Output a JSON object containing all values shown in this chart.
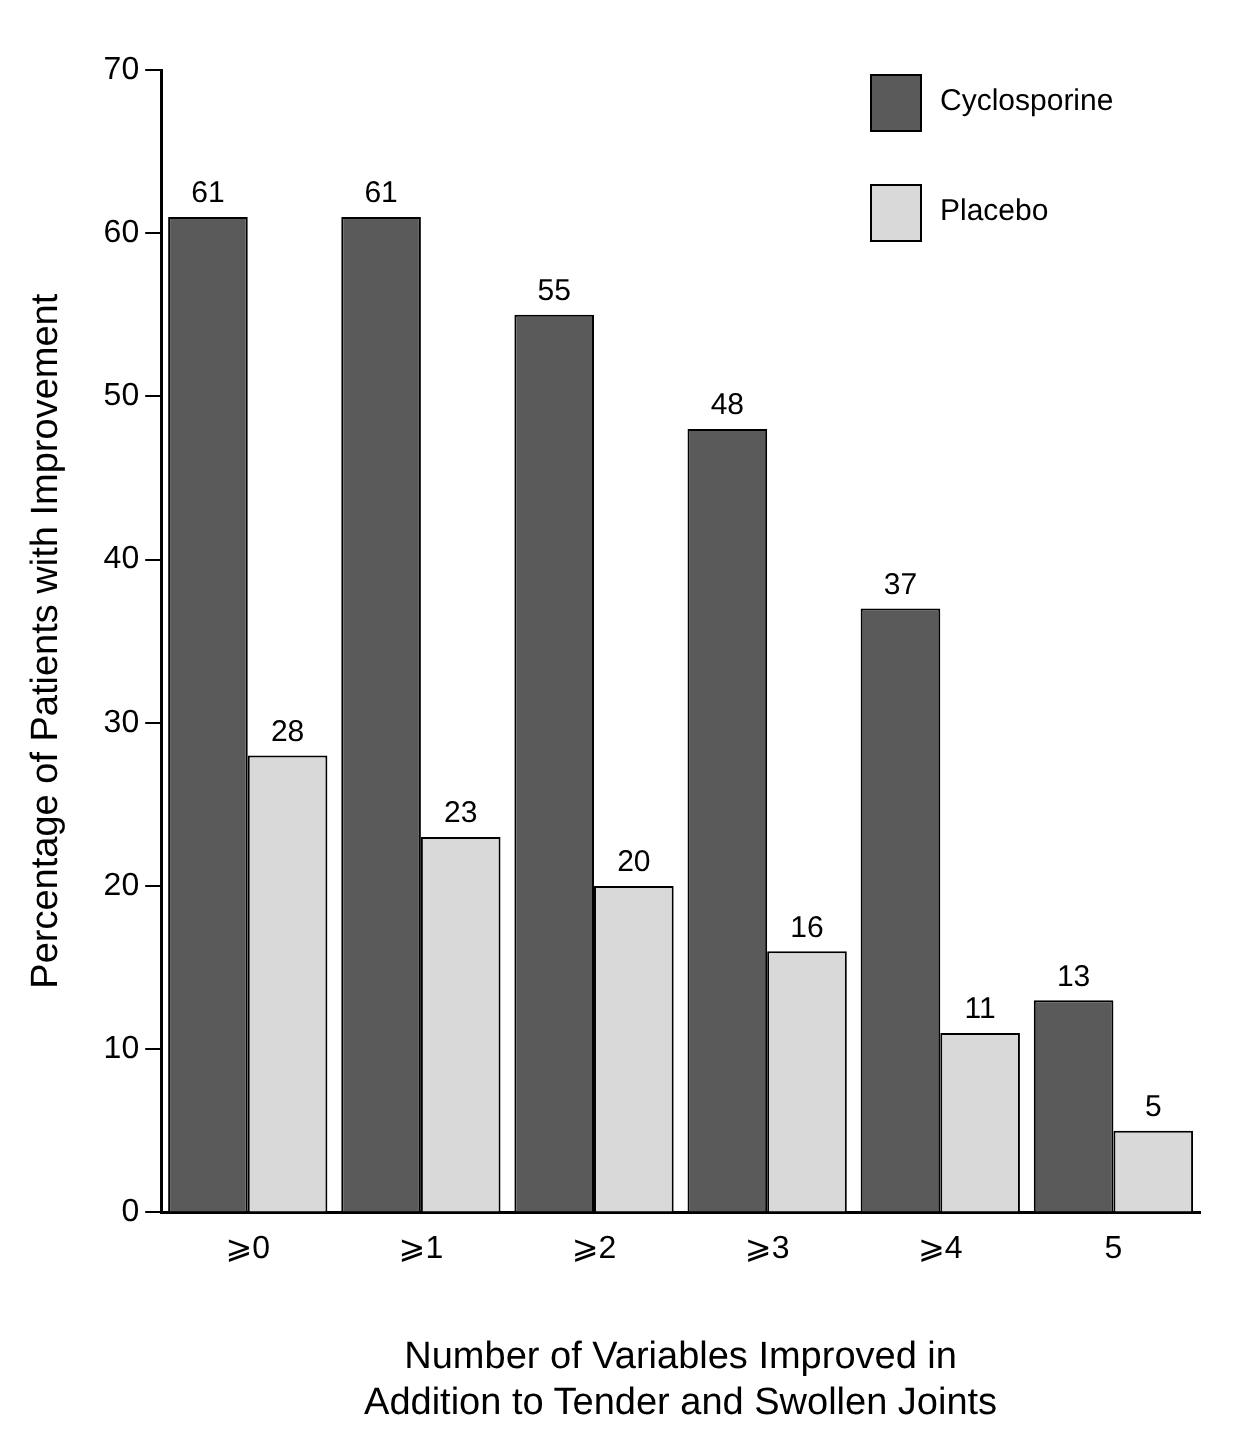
{
  "chart_data": {
    "type": "bar",
    "xlabel": "Number of Variables Improved in\nAddition to Tender and Swollen Joints",
    "ylabel": "Percentage of Patients with Improvement",
    "categories": [
      "⩾0",
      "⩾1",
      "⩾2",
      "⩾3",
      "⩾4",
      "5"
    ],
    "series": [
      {
        "name": "Cyclosporine",
        "color": "#5a5a5a",
        "values": [
          61,
          61,
          55,
          48,
          37,
          13
        ]
      },
      {
        "name": "Placebo",
        "color": "#d9d9d9",
        "values": [
          28,
          23,
          20,
          16,
          11,
          5
        ]
      }
    ],
    "ylim": [
      0,
      70
    ],
    "yticks": [
      0,
      10,
      20,
      30,
      40,
      50,
      60,
      70
    ],
    "grid": false,
    "legend": "top right",
    "data_labels": true
  }
}
